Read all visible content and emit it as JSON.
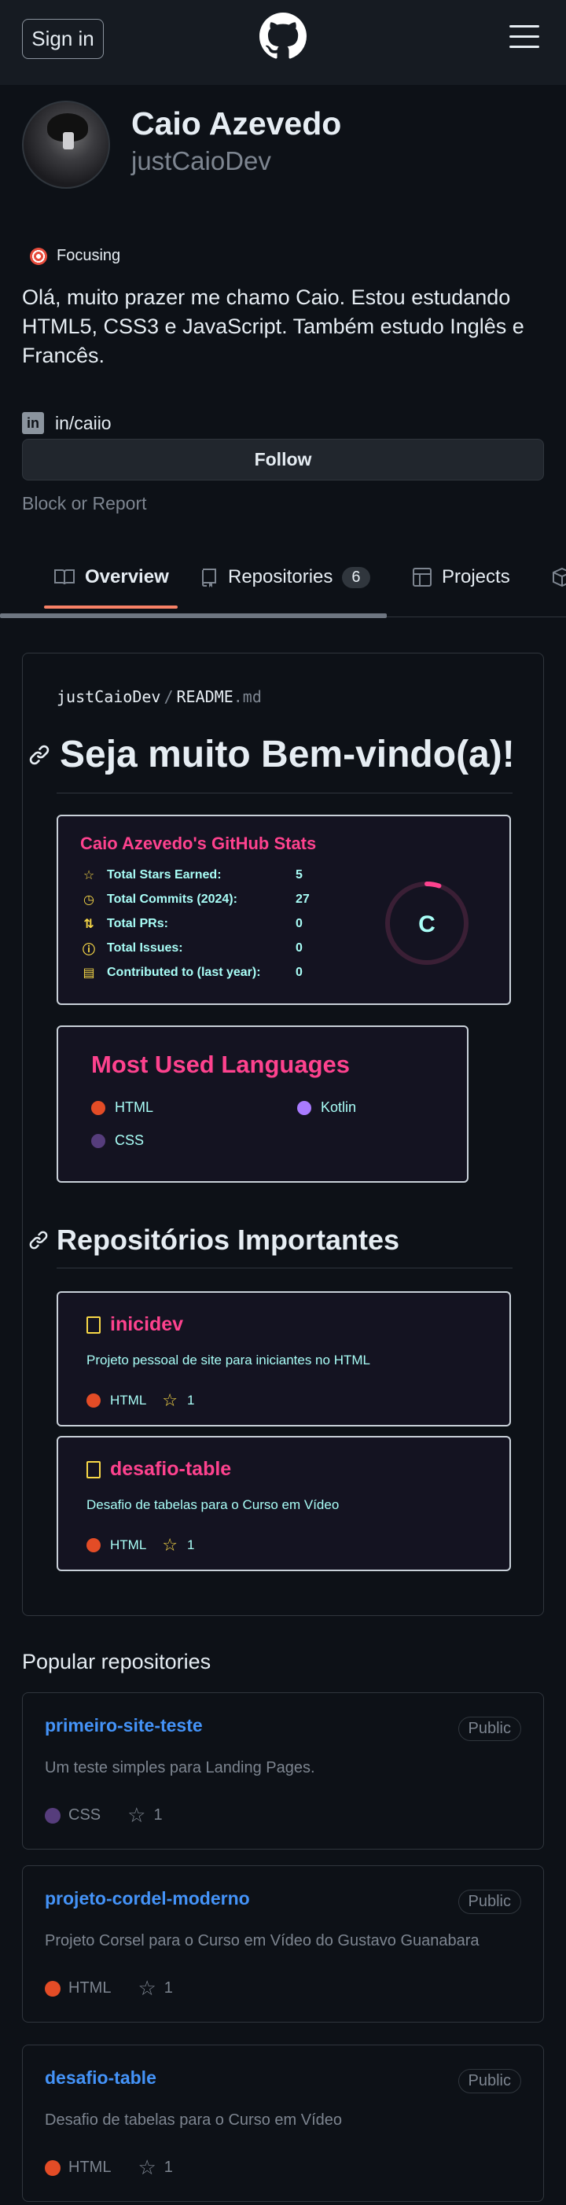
{
  "header": {
    "signin_label": "Sign in",
    "logo_icon": "github-logo-icon",
    "menu_icon": "hamburger-menu-icon"
  },
  "profile": {
    "name": "Caio Azevedo",
    "login": "justCaioDev",
    "status_emoji": "target-icon",
    "status_text": "Focusing",
    "bio": "Olá, muito prazer me chamo Caio. Estou estudando HTML5, CSS3 e JavaScript. Também estudo Inglês e Francês.",
    "social_link": "in/caiio",
    "follow_label": "Follow",
    "block_label": "Block or Report"
  },
  "tabs": [
    {
      "label": "Overview",
      "icon": "book-icon",
      "active": true
    },
    {
      "label": "Repositories",
      "icon": "repo-icon",
      "count": "6"
    },
    {
      "label": "Projects",
      "icon": "table-icon"
    },
    {
      "label": "",
      "icon": "package-icon"
    }
  ],
  "readme": {
    "owner": "justCaioDev",
    "sep": "/",
    "file": "README",
    "ext": ".md",
    "heading": "Seja muito Bem-vindo(a)!",
    "stats": {
      "title": "Caio Azevedo's GitHub Stats",
      "rank": "C",
      "rank_progress": 0.05,
      "rows": [
        {
          "icon": "star-icon",
          "label": "Total Stars Earned:",
          "value": "5"
        },
        {
          "icon": "history-icon",
          "label": "Total Commits (2024):",
          "value": "27"
        },
        {
          "icon": "pull-request-icon",
          "label": "Total PRs:",
          "value": "0"
        },
        {
          "icon": "issue-icon",
          "label": "Total Issues:",
          "value": "0"
        },
        {
          "icon": "repo-icon",
          "label": "Contributed to (last year):",
          "value": "0"
        }
      ]
    },
    "languages": {
      "title": "Most Used Languages",
      "items": [
        {
          "name": "HTML",
          "color": "#e34c26"
        },
        {
          "name": "Kotlin",
          "color": "#A97BFF"
        },
        {
          "name": "CSS",
          "color": "#563d7c"
        }
      ]
    },
    "important_heading": "Repositórios Importantes",
    "pins": [
      {
        "name": "inicidev",
        "desc": "Projeto pessoal de site para iniciantes no HTML",
        "lang": "HTML",
        "lang_color": "#e34c26",
        "stars": "1"
      },
      {
        "name": "desafio-table",
        "desc": "Desafio de tabelas para o Curso em Vídeo",
        "lang": "HTML",
        "lang_color": "#e34c26",
        "stars": "1"
      }
    ]
  },
  "popular": {
    "title": "Popular repositories",
    "repos": [
      {
        "name": "primeiro-site-teste",
        "badge": "Public",
        "desc": "Um teste simples para Landing Pages.",
        "lang": "CSS",
        "lang_color": "#563d7c",
        "stars": "1"
      },
      {
        "name": "projeto-cordel-moderno",
        "badge": "Public",
        "desc": "Projeto Corsel para o Curso em Vídeo do Gustavo Guanabara",
        "lang": "HTML",
        "lang_color": "#e34c26",
        "stars": "1"
      },
      {
        "name": "desafio-table",
        "badge": "Public",
        "desc": "Desafio de tabelas para o Curso em Vídeo",
        "lang": "HTML",
        "lang_color": "#e34c26",
        "stars": "1"
      }
    ]
  }
}
